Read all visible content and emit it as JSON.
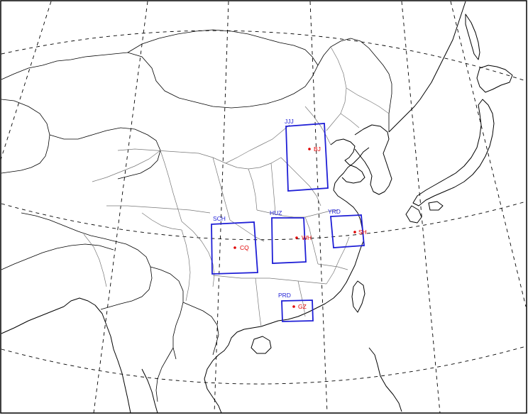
{
  "colors": {
    "domain_box": "#1f1fd6",
    "region_label": "#1f1fd6",
    "city_dot": "#e00000",
    "city_label": "#e00000"
  },
  "regions": [
    {
      "id": "jjj",
      "label": "JJJ"
    },
    {
      "id": "sch",
      "label": "SCH"
    },
    {
      "id": "huz",
      "label": "HUZ"
    },
    {
      "id": "yrd",
      "label": "YRD"
    },
    {
      "id": "prd",
      "label": "PRD"
    }
  ],
  "cities": [
    {
      "id": "bj",
      "label": "BJ"
    },
    {
      "id": "cq",
      "label": "CQ"
    },
    {
      "id": "wh",
      "label": "WH"
    },
    {
      "id": "sh",
      "label": "SH"
    },
    {
      "id": "gz",
      "label": "GZ"
    }
  ]
}
